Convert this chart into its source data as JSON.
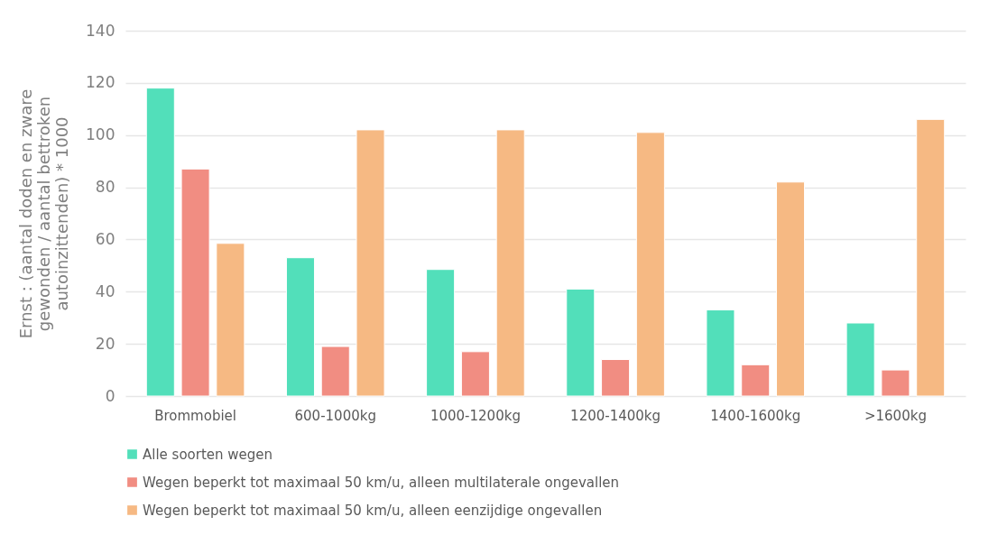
{
  "chart_data": {
    "type": "bar",
    "ylabel": "Ernst : (aantal doden en zware gewonden / aantal bettroken autoinzittenden) * 1000",
    "categories": [
      "Brommobiel",
      "600-1000kg",
      "1000-1200kg",
      "1200-1400kg",
      "1400-1600kg",
      ">1600kg"
    ],
    "series": [
      {
        "name": "Alle soorten wegen",
        "color": "#52dfba",
        "values": [
          118,
          53,
          48.5,
          41,
          33,
          28
        ]
      },
      {
        "name": "Wegen beperkt tot maximaal 50 km/u, alleen multilaterale ongevallen",
        "color": "#f18d82",
        "values": [
          87,
          19,
          17,
          14,
          12,
          10
        ]
      },
      {
        "name": "Wegen beperkt tot maximaal 50 km/u, alleen eenzijdige ongevallen",
        "color": "#f6b983",
        "values": [
          58.5,
          102,
          102,
          101,
          82,
          106
        ]
      }
    ],
    "ylim": [
      0,
      140
    ],
    "yticks": [
      0,
      20,
      40,
      60,
      80,
      100,
      120,
      140
    ],
    "grid": "y",
    "legend": "bottom"
  }
}
